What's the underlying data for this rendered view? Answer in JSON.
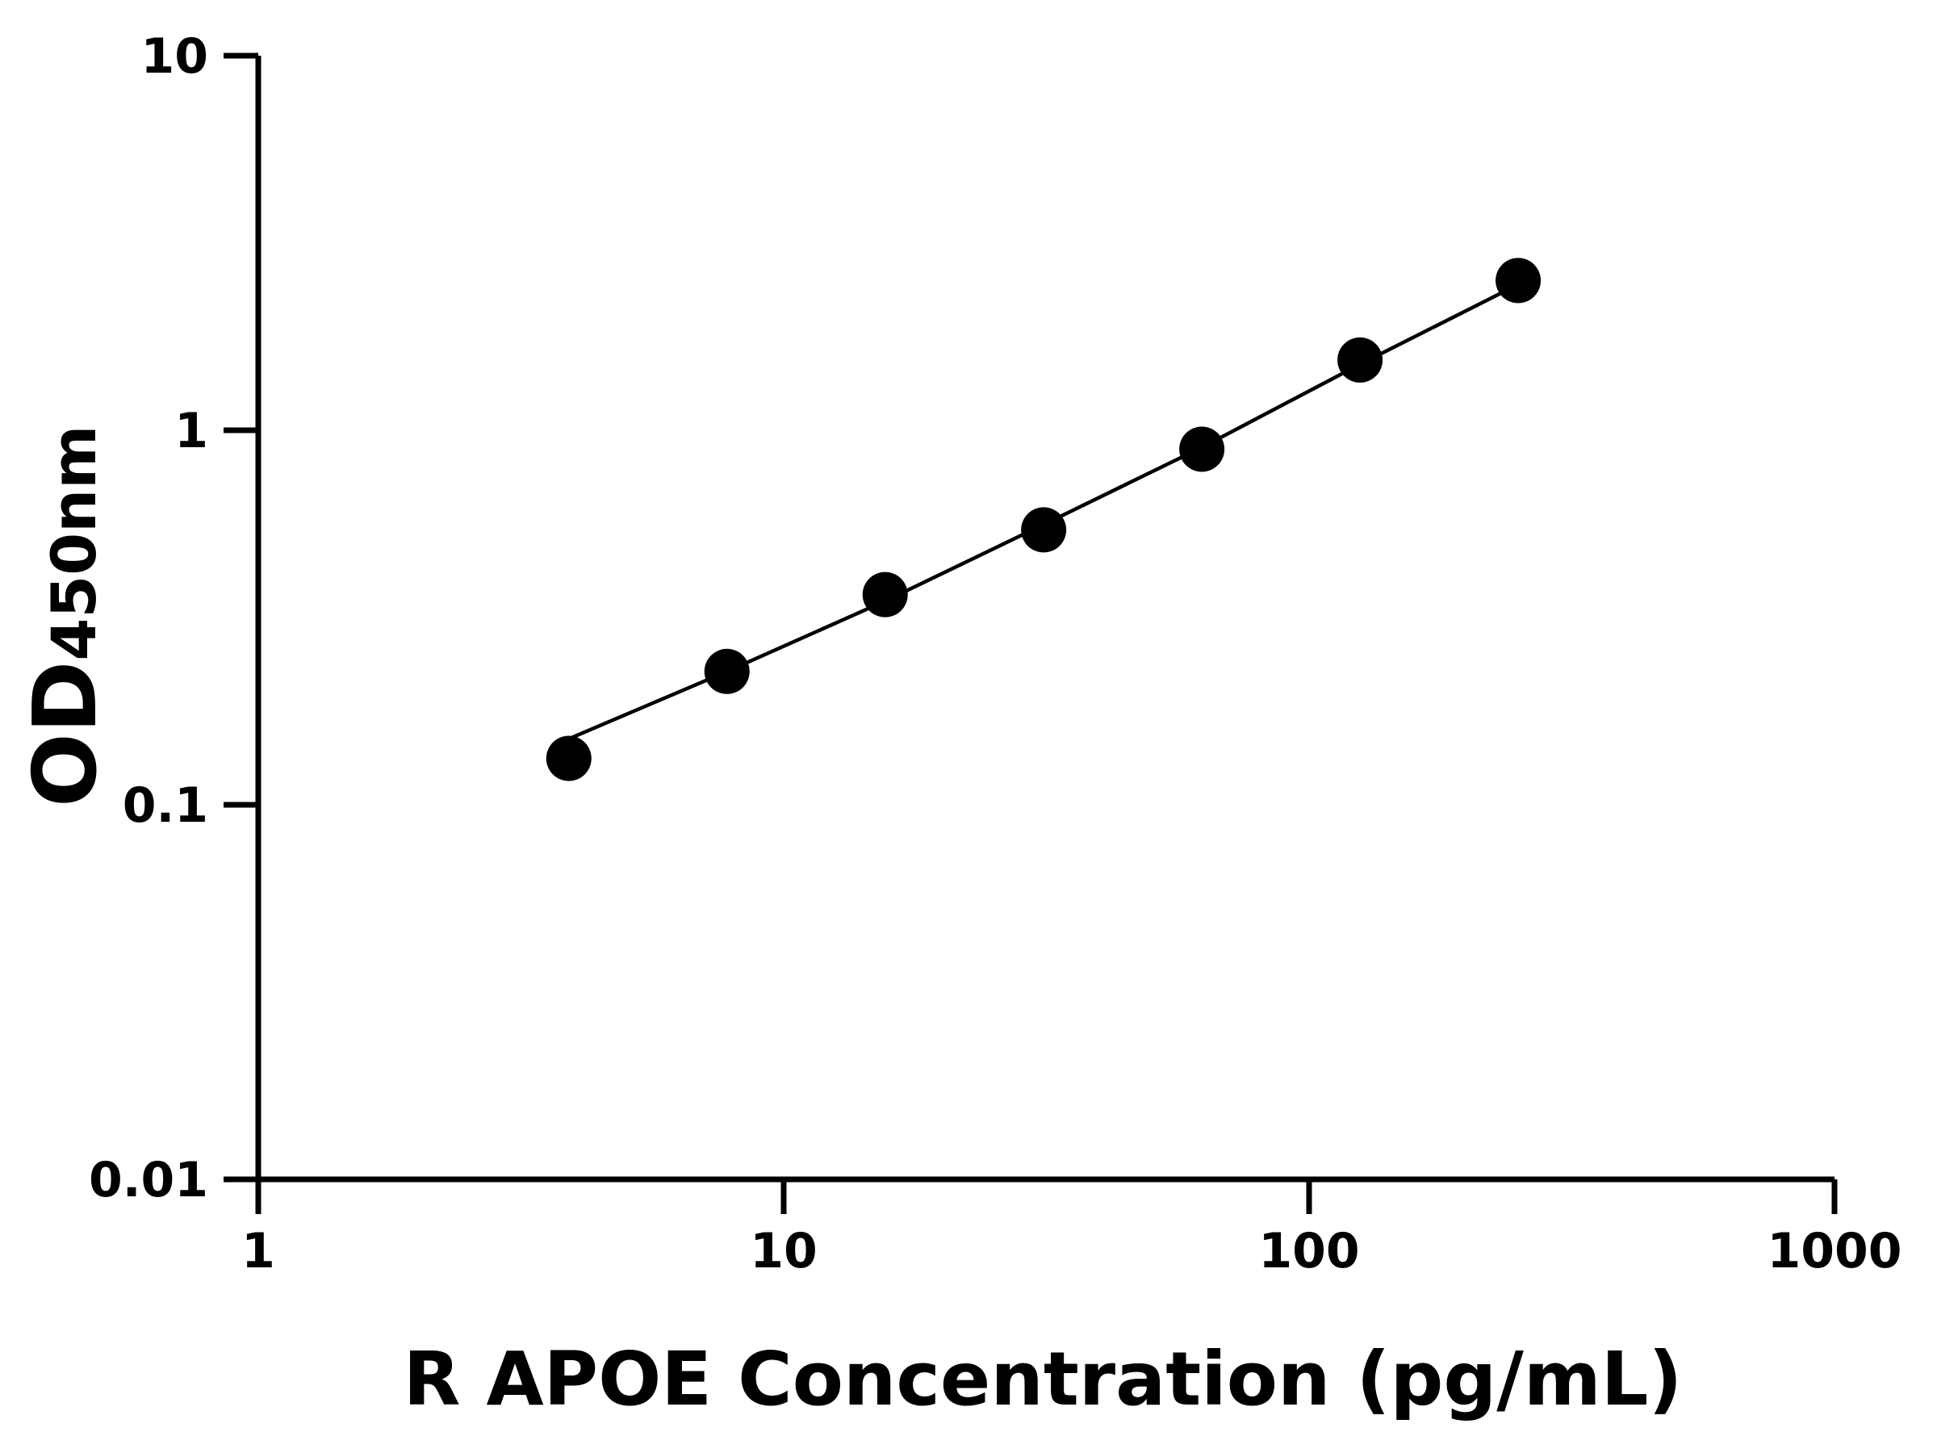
{
  "chart_data": {
    "type": "scatter",
    "x_label": "R APOE Concentration (pg/mL)",
    "y_label": "OD",
    "y_label_sub": "450nm",
    "xscale": "log",
    "yscale": "log",
    "xlim": [
      1,
      1000
    ],
    "xticks": [
      1,
      10,
      100,
      1000
    ],
    "ylim": [
      0.01,
      10
    ],
    "yticks": [
      0.01,
      0.1,
      1,
      10
    ],
    "series": [
      {
        "mode": "markers",
        "color": "#000000",
        "x": [
          3.9,
          7.8,
          15.6,
          31.25,
          62.5,
          125,
          250
        ],
        "values": [
          0.133,
          0.227,
          0.364,
          0.542,
          0.89,
          1.54,
          2.51
        ]
      },
      {
        "mode": "line",
        "color": "#000000",
        "x": [
          3.9,
          7.8,
          15.6,
          31.25,
          62.5,
          125,
          250
        ],
        "values": [
          0.15,
          0.227,
          0.35,
          0.56,
          0.9,
          1.5,
          2.45
        ]
      }
    ]
  }
}
